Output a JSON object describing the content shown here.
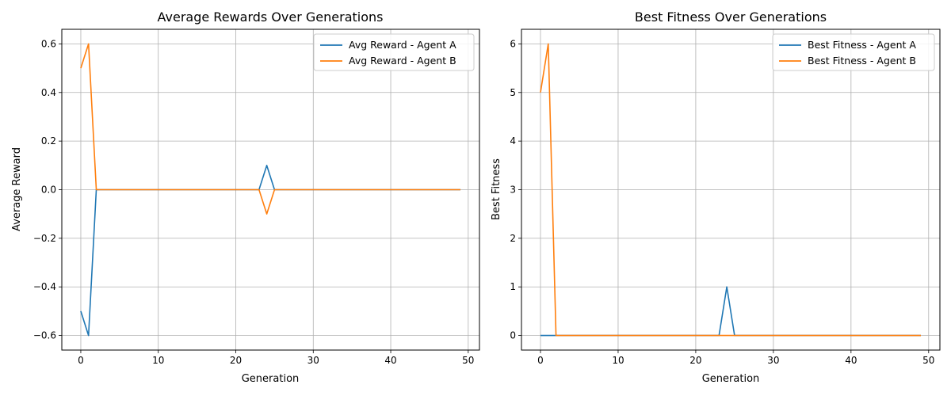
{
  "chart_data": [
    {
      "type": "line",
      "title": "Average Rewards Over Generations",
      "xlabel": "Generation",
      "ylabel": "Average Reward",
      "xlim": [
        -2.45,
        51.45
      ],
      "ylim": [
        -0.66,
        0.66
      ],
      "xticks": [
        0,
        10,
        20,
        30,
        40,
        50
      ],
      "xtick_labels": [
        "0",
        "10",
        "20",
        "30",
        "40",
        "50"
      ],
      "yticks": [
        -0.6,
        -0.4,
        -0.2,
        0.0,
        0.2,
        0.4,
        0.6
      ],
      "ytick_labels": [
        "−0.6",
        "−0.4",
        "−0.2",
        "0.0",
        "0.2",
        "0.4",
        "0.6"
      ],
      "grid": true,
      "legend_position": "upper right",
      "series": [
        {
          "name": "Avg Reward - Agent A",
          "color": "#1f77b4",
          "x": [
            0,
            1,
            2,
            23,
            24,
            25,
            49
          ],
          "y": [
            -0.5,
            -0.6,
            0.0,
            0.0,
            0.1,
            0.0,
            0.0
          ]
        },
        {
          "name": "Avg Reward - Agent B",
          "color": "#ff7f0e",
          "x": [
            0,
            1,
            2,
            23,
            24,
            25,
            49
          ],
          "y": [
            0.5,
            0.6,
            0.0,
            0.0,
            -0.1,
            0.0,
            0.0
          ]
        }
      ]
    },
    {
      "type": "line",
      "title": "Best Fitness Over Generations",
      "xlabel": "Generation",
      "ylabel": "Best Fitness",
      "xlim": [
        -2.45,
        51.45
      ],
      "ylim": [
        -0.3,
        6.3
      ],
      "xticks": [
        0,
        10,
        20,
        30,
        40,
        50
      ],
      "xtick_labels": [
        "0",
        "10",
        "20",
        "30",
        "40",
        "50"
      ],
      "yticks": [
        0,
        1,
        2,
        3,
        4,
        5,
        6
      ],
      "ytick_labels": [
        "0",
        "1",
        "2",
        "3",
        "4",
        "5",
        "6"
      ],
      "grid": true,
      "legend_position": "upper right",
      "series": [
        {
          "name": "Best Fitness - Agent A",
          "color": "#1f77b4",
          "x": [
            0,
            1,
            2,
            23,
            24,
            25,
            49
          ],
          "y": [
            0,
            0,
            0,
            0,
            1,
            0,
            0
          ]
        },
        {
          "name": "Best Fitness - Agent B",
          "color": "#ff7f0e",
          "x": [
            0,
            1,
            2,
            23,
            24,
            25,
            49
          ],
          "y": [
            5,
            6,
            0,
            0,
            0,
            0,
            0
          ]
        }
      ]
    }
  ]
}
